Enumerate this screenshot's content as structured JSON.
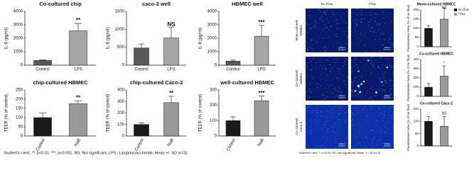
{
  "chart_data": [
    {
      "type": "bar",
      "title": "Co-cultured chip",
      "ylabel": "IL-8 (pg/ml)",
      "categories": [
        "Control",
        "LPS"
      ],
      "values": [
        350,
        2550
      ],
      "errors": [
        50,
        550
      ],
      "colors": [
        "#595959",
        "#a6a6a6"
      ],
      "ylim": [
        0,
        4000
      ],
      "yticks": [
        0,
        1000,
        2000,
        3000,
        4000
      ],
      "annotation": "**"
    },
    {
      "type": "bar",
      "title": "caco-2 well",
      "ylabel": "IL-8 (pg/ml)",
      "categories": [
        "Control",
        "LPS"
      ],
      "values": [
        480,
        760
      ],
      "errors": [
        110,
        290
      ],
      "colors": [
        "#595959",
        "#a6a6a6"
      ],
      "ylim": [
        0,
        1500
      ],
      "yticks": [
        0,
        500,
        1000,
        1500
      ],
      "annotation": "NS"
    },
    {
      "type": "bar",
      "title": "HBMEC well",
      "ylabel": "IL-8 (pg/ml)",
      "categories": [
        "Control",
        "LPS"
      ],
      "values": [
        300,
        2150
      ],
      "errors": [
        80,
        800
      ],
      "colors": [
        "#595959",
        "#a6a6a6"
      ],
      "ylim": [
        0,
        4000
      ],
      "yticks": [
        0,
        1000,
        2000,
        3000,
        4000
      ],
      "annotation": "***"
    },
    {
      "type": "bar",
      "title": "chip-cultured HBMEC",
      "ylabel": "TEER (% of control)",
      "categories": [
        "Control",
        "NaB"
      ],
      "values": [
        100,
        175
      ],
      "errors": [
        25,
        15
      ],
      "colors": [
        "#1a1a1a",
        "#999999"
      ],
      "ylim": [
        0,
        250
      ],
      "yticks": [
        0,
        50,
        100,
        150,
        200,
        250
      ],
      "annotation": "**"
    },
    {
      "type": "bar",
      "title": "chip-cultured Caco-2",
      "ylabel": "TEER (% of control)",
      "categories": [
        "Control",
        "NaB"
      ],
      "values": [
        100,
        290
      ],
      "errors": [
        15,
        55
      ],
      "colors": [
        "#1a1a1a",
        "#999999"
      ],
      "ylim": [
        0,
        400
      ],
      "yticks": [
        0,
        100,
        200,
        300,
        400
      ],
      "annotation": "**"
    },
    {
      "type": "bar",
      "title": "well-cultured HBMEC",
      "ylabel": "TEER (% of control)",
      "categories": [
        "Control",
        "NaB"
      ],
      "values": [
        100,
        230
      ],
      "errors": [
        25,
        30
      ],
      "colors": [
        "#1a1a1a",
        "#999999"
      ],
      "ylim": [
        0,
        300
      ],
      "yticks": [
        0,
        100,
        200,
        300
      ],
      "annotation": "***"
    },
    {
      "type": "bar",
      "title": "Mono-cultured HBMEC",
      "ylabel": "Fluorescence Area (% of no flow)",
      "series": [
        {
          "name": "No flow",
          "color": "#1a1a1a",
          "values": [
            100
          ],
          "errors": [
            15
          ]
        },
        {
          "name": "Flow",
          "color": "#999999",
          "values": [
            150
          ],
          "errors": [
            60
          ]
        }
      ],
      "legend": true,
      "ylim": [
        0,
        200
      ],
      "yticks": [
        0,
        50,
        100,
        150,
        200
      ],
      "annotation": "NS"
    },
    {
      "type": "bar",
      "title": "Co-cultured HBMEC",
      "ylabel": "Fluorescence Area (% of no flow)",
      "series": [
        {
          "name": "No flow",
          "color": "#1a1a1a",
          "values": [
            100
          ],
          "errors": [
            40
          ]
        },
        {
          "name": "Flow",
          "color": "#999999",
          "values": [
            220
          ],
          "errors": [
            110
          ]
        }
      ],
      "legend": false,
      "ylim": [
        0,
        400
      ],
      "yticks": [
        0,
        100,
        200,
        300,
        400
      ],
      "annotation": "*"
    },
    {
      "type": "bar",
      "title": "Co-cultured Caco-2",
      "ylabel": "Fluorescence Area (% of no flow)",
      "series": [
        {
          "name": "No flow",
          "color": "#1a1a1a",
          "values": [
            100
          ],
          "errors": [
            20
          ]
        },
        {
          "name": "Flow",
          "color": "#999999",
          "values": [
            80
          ],
          "errors": [
            40
          ]
        }
      ],
      "legend": false,
      "ylim": [
        0,
        150
      ],
      "yticks": [
        0,
        50,
        100,
        150
      ],
      "annotation": "NS"
    }
  ],
  "microscopy": {
    "columns": [
      "No Flow",
      "Flow"
    ],
    "rows": [
      [
        "Mono-cultured",
        "HBMEC"
      ],
      [
        "Co-cultured",
        "HBMEC"
      ],
      [
        "Co-cultured",
        "Caco-2"
      ]
    ],
    "scale": "100μm"
  },
  "footnotes": [
    "Student's t-test, **; p<0.01, ***; p<0.001, NS; Not significant, LPS : Lipopolysaccharide, Mean +/- SD (n=3)",
    "Student's t-test, *; p<0.05, NS; Not significant, Mean +/- SD (n=3)"
  ]
}
